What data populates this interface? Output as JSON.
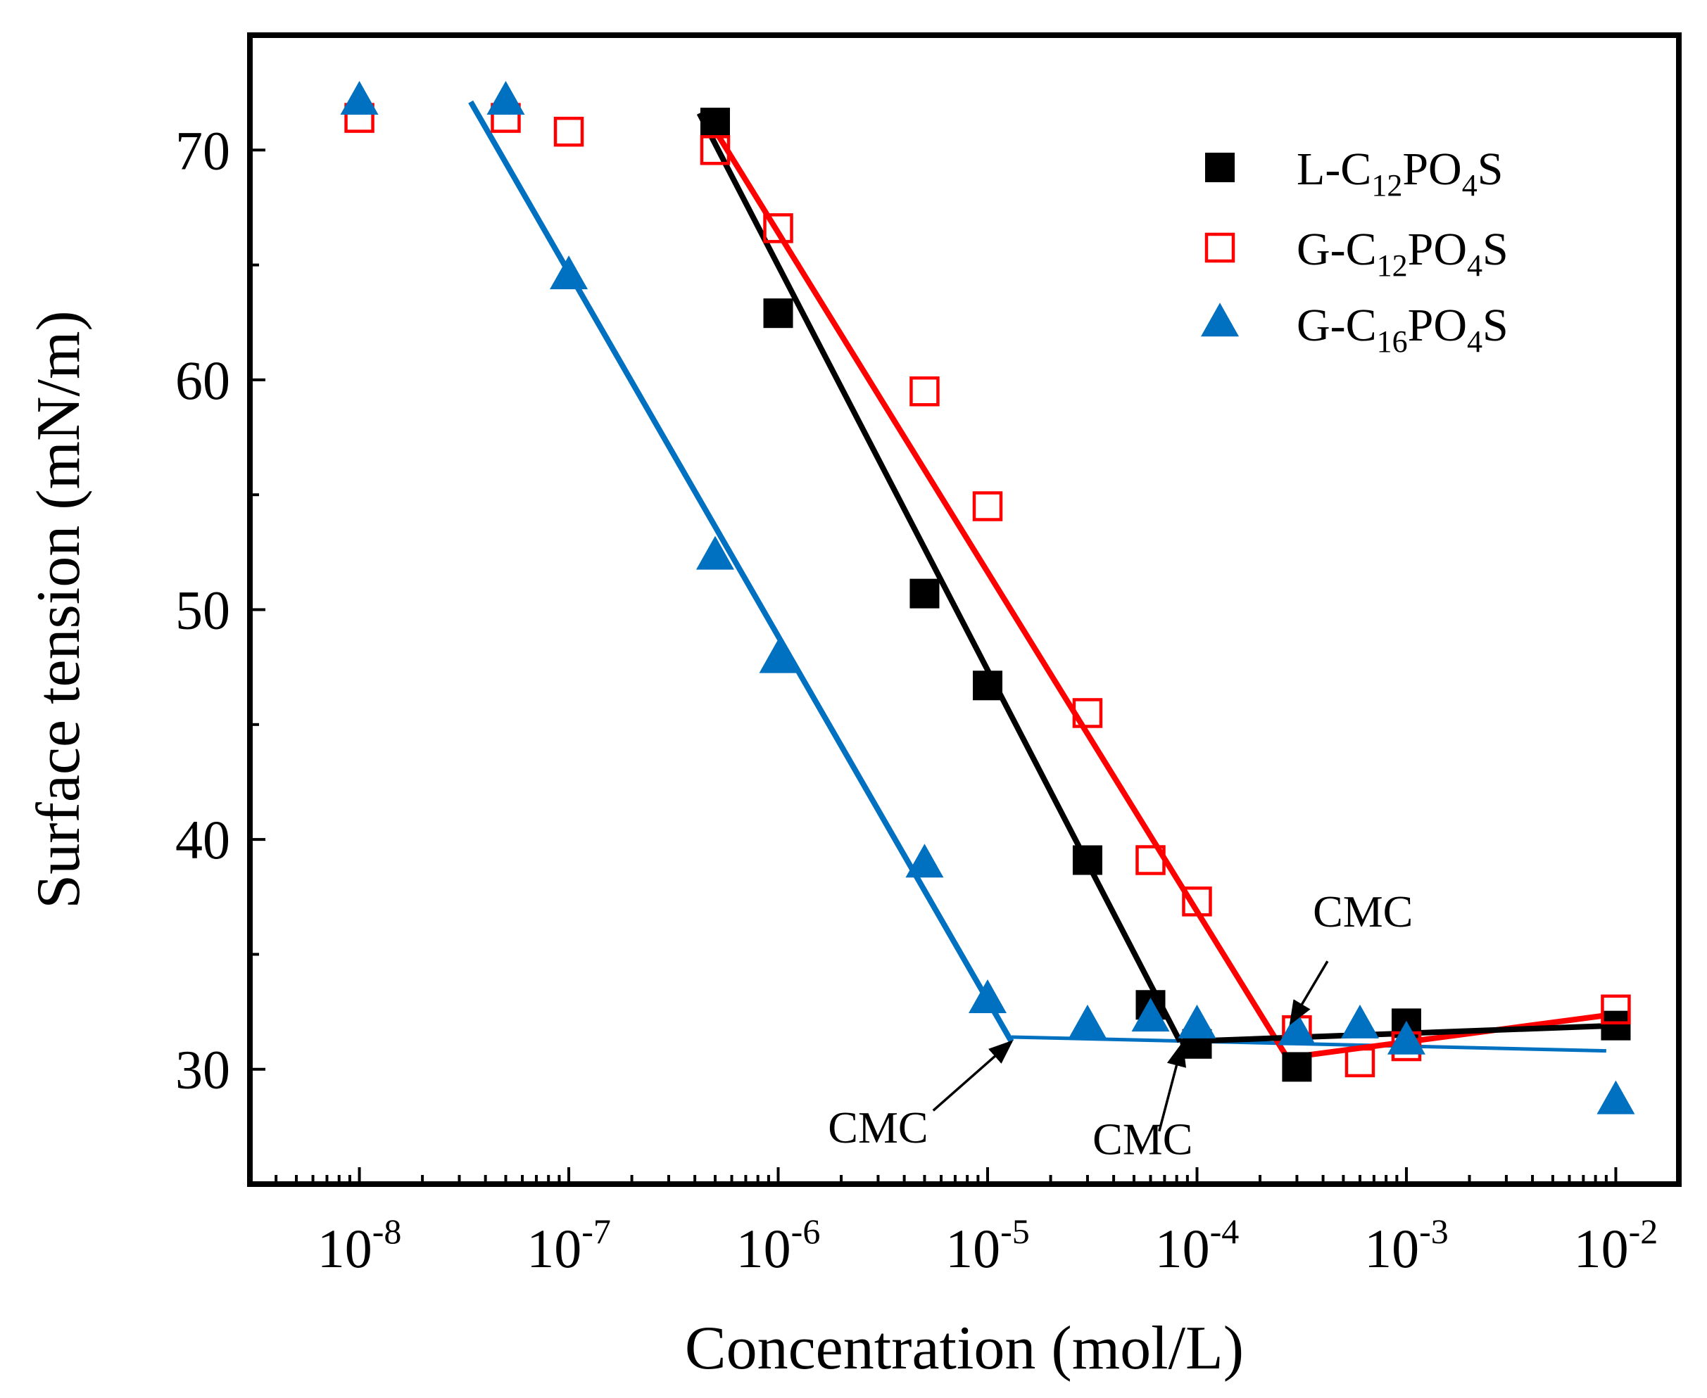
{
  "chart_data": {
    "type": "scatter",
    "title": "",
    "xlabel": "Concentration (mol/L)",
    "ylabel": "Surface tension (mN/m)",
    "xscale": "log",
    "xlim": [
      3e-09,
      0.02
    ],
    "ylim": [
      25,
      75
    ],
    "yticks": [
      {
        "value": 30,
        "label": "30"
      },
      {
        "value": 40,
        "label": "40"
      },
      {
        "value": 50,
        "label": "50"
      },
      {
        "value": 60,
        "label": "60"
      },
      {
        "value": 70,
        "label": "70"
      }
    ],
    "xticks": [
      {
        "value": 1e-08,
        "base": "10",
        "exp": "-8"
      },
      {
        "value": 1e-07,
        "base": "10",
        "exp": "-7"
      },
      {
        "value": 1e-06,
        "base": "10",
        "exp": "-6"
      },
      {
        "value": 1e-05,
        "base": "10",
        "exp": "-5"
      },
      {
        "value": 0.0001,
        "base": "10",
        "exp": "-4"
      },
      {
        "value": 0.001,
        "base": "10",
        "exp": "-3"
      },
      {
        "value": 0.01,
        "base": "10",
        "exp": "-2"
      }
    ],
    "legend_position": "top-right",
    "series": [
      {
        "name": "L-C12PO4S",
        "legend": {
          "a": "L-C",
          "b": "12",
          "c": "PO",
          "d": "4",
          "e": "S"
        },
        "marker": "filled-square",
        "color": "#000000",
        "x": [
          5e-07,
          1e-06,
          5e-06,
          1e-05,
          3e-05,
          6e-05,
          0.0001,
          0.0003,
          0.001,
          0.01
        ],
        "y": [
          71.2,
          62.9,
          50.7,
          46.7,
          39.1,
          32.8,
          31.1,
          30.1,
          32.0,
          31.9
        ],
        "fits": [
          {
            "x": [
              4.2e-07,
              8.3e-05
            ],
            "y": [
              71.6,
              31.2
            ]
          },
          {
            "x": [
              8.3e-05,
              0.01
            ],
            "y": [
              31.2,
              31.9
            ]
          }
        ]
      },
      {
        "name": "G-C12PO4S",
        "legend": {
          "a": "G-C",
          "b": "12",
          "c": "PO",
          "d": "4",
          "e": "S"
        },
        "marker": "open-square",
        "color": "#ff0000",
        "x": [
          1e-08,
          5e-08,
          1e-07,
          5e-07,
          1e-06,
          5e-06,
          1e-05,
          3e-05,
          6e-05,
          0.0001,
          0.0003,
          0.0006,
          0.001,
          0.01
        ],
        "y": [
          71.4,
          71.4,
          70.8,
          70.0,
          66.6,
          59.5,
          54.5,
          45.5,
          39.1,
          37.3,
          31.7,
          30.3,
          31.0,
          32.6
        ],
        "fits": [
          {
            "x": [
              5.2e-07,
              0.00027
            ],
            "y": [
              70.6,
              30.5
            ]
          },
          {
            "x": [
              0.00027,
              0.01
            ],
            "y": [
              30.5,
              32.4
            ]
          }
        ]
      },
      {
        "name": "G-C16PO4S",
        "legend": {
          "a": "G-C",
          "b": "16",
          "c": "PO",
          "d": "4",
          "e": "S"
        },
        "marker": "filled-triangle",
        "color": "#0070c0",
        "x": [
          1e-08,
          5e-08,
          1e-07,
          5e-07,
          1e-06,
          5e-06,
          1e-05,
          3e-05,
          6e-05,
          0.0001,
          0.0003,
          0.0006,
          0.001,
          0.01
        ],
        "y": [
          72.1,
          72.1,
          64.5,
          52.3,
          47.8,
          38.9,
          33.0,
          31.9,
          32.2,
          31.9,
          31.6,
          31.9,
          31.2,
          28.6
        ],
        "fits": [
          {
            "x": [
              3.4e-08,
              1.3e-05
            ],
            "y": [
              72.1,
              31.2
            ]
          },
          {
            "x": [
              1.3e-05,
              0.009
            ],
            "y": [
              31.4,
              30.8
            ]
          }
        ]
      }
    ],
    "annotations": [
      {
        "text": "CMC",
        "text_x": 3e-06,
        "text_y": 26.8,
        "arrow_from": [
          5.5e-06,
          28.2
        ],
        "arrow_to": [
          1.3e-05,
          31.2
        ]
      },
      {
        "text": "CMC",
        "text_x": 5.5e-05,
        "text_y": 26.3,
        "arrow_from": [
          6.6e-05,
          27.3
        ],
        "arrow_to": [
          8.5e-05,
          31.1
        ]
      },
      {
        "text": "CMC",
        "text_x": 0.00062,
        "text_y": 36.2,
        "arrow_from": [
          0.00042,
          34.7
        ],
        "arrow_to": [
          0.00028,
          32.0
        ]
      }
    ]
  }
}
